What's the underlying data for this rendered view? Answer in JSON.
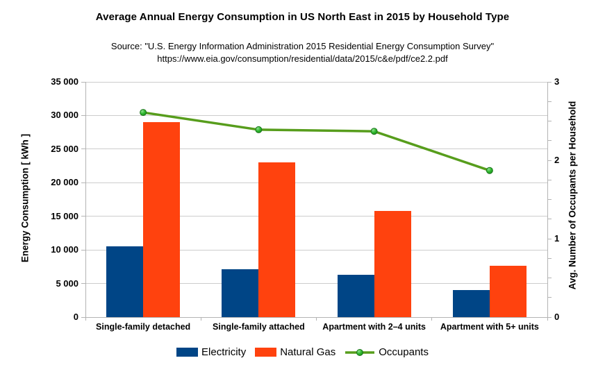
{
  "header": {
    "title": "Average Annual Energy Consumption in US North East in 2015 by Household Type",
    "source_line1": "Source: \"U.S. Energy Information Administration 2015 Residential Energy Consumption Survey\"",
    "source_line2": "https://www.eia.gov/consumption/residential/data/2015/c&e/pdf/ce2.2.pdf"
  },
  "chart_data": {
    "type": "bar",
    "subtype": "grouped-bars-with-line-overlay",
    "categories": [
      "Single-family detached",
      "Single-family attached",
      "Apartment with 2–4 units",
      "Apartment with 5+ units"
    ],
    "series": [
      {
        "name": "Electricity",
        "type": "bar",
        "axis": "left",
        "color": "#004586",
        "values": [
          10500,
          7100,
          6300,
          4000
        ]
      },
      {
        "name": "Natural Gas",
        "type": "bar",
        "axis": "left",
        "color": "#FF420E",
        "values": [
          29000,
          23000,
          15800,
          7600
        ]
      },
      {
        "name": "Occupants",
        "type": "line",
        "axis": "right",
        "color": "#579D1C",
        "marker_fill": "#2EB82E",
        "marker_edge": "#1C741C",
        "values": [
          2.61,
          2.39,
          2.37,
          1.87
        ]
      }
    ],
    "left_axis": {
      "label": "Energy Consumption [ kWh ]",
      "min": 0,
      "max": 35000,
      "tick_interval": 5000,
      "tick_labels": [
        "0",
        "5 000",
        "10 000",
        "15 000",
        "20 000",
        "25 000",
        "30 000",
        "35 000"
      ]
    },
    "right_axis": {
      "label": "Avg. Number of Occupants per Household",
      "min": 0,
      "max": 3,
      "tick_interval": 1,
      "minor_tick_interval": 0.25,
      "tick_labels": [
        "0",
        "1",
        "2",
        "3"
      ]
    },
    "grid": "horizontal",
    "legend_position": "bottom",
    "colors": {
      "gridline": "#CCCCCC",
      "axis_line": "#B3B3B3",
      "text": "#000000",
      "background": "#FFFFFF"
    }
  }
}
